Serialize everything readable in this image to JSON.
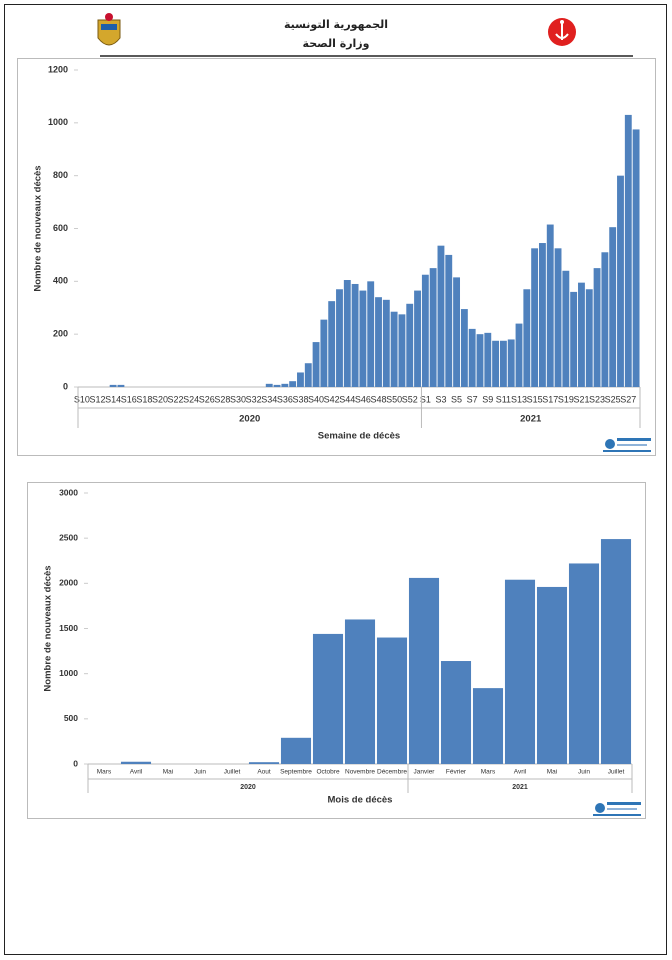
{
  "header": {
    "line1": "الجمهورية التونسية",
    "line2": "وزارة الصحة"
  },
  "chart_data": [
    {
      "type": "bar",
      "ylabel": "Nombre de nouveaux décès",
      "xlabel": "Semaine de décès",
      "color": "#4f81bd",
      "ylim": [
        0,
        1200
      ],
      "yticks": [
        0,
        200,
        400,
        600,
        800,
        1000,
        1200
      ],
      "x_groups": [
        {
          "label": "2020",
          "size": 44
        },
        {
          "label": "2021",
          "size": 28
        }
      ],
      "categories": [
        "S10",
        null,
        "S12",
        null,
        "S14",
        null,
        "S16",
        null,
        "S18",
        null,
        "S20",
        null,
        "S22",
        null,
        "S24",
        null,
        "S26",
        null,
        "S28",
        null,
        "S30",
        null,
        "S32",
        null,
        "S34",
        null,
        "S36",
        null,
        "S38",
        null,
        "S40",
        null,
        "S42",
        null,
        "S44",
        null,
        "S46",
        null,
        "S48",
        null,
        "S50",
        null,
        "S52",
        null,
        "S1",
        null,
        "S3",
        null,
        "S5",
        null,
        "S7",
        null,
        "S9",
        null,
        "S11",
        null,
        "S13",
        null,
        "S15",
        null,
        "S17",
        null,
        "S19",
        null,
        "S21",
        null,
        "S23",
        null,
        "S25",
        null,
        "S27",
        null
      ],
      "values": [
        0,
        0,
        0,
        0,
        8,
        8,
        0,
        0,
        0,
        0,
        0,
        0,
        0,
        0,
        0,
        0,
        0,
        0,
        0,
        0,
        0,
        0,
        0,
        0,
        12,
        8,
        12,
        22,
        55,
        90,
        170,
        255,
        325,
        370,
        405,
        390,
        365,
        400,
        340,
        330,
        285,
        275,
        315,
        365,
        425,
        450,
        535,
        500,
        415,
        295,
        220,
        200,
        205,
        175,
        175,
        180,
        240,
        370,
        525,
        545,
        615,
        525,
        440,
        360,
        395,
        370,
        450,
        510,
        605,
        800,
        1030,
        975
      ]
    },
    {
      "type": "bar",
      "ylabel": "Nombre de nouveaux décès",
      "xlabel": "Mois de décès",
      "color": "#4f81bd",
      "ylim": [
        0,
        3000
      ],
      "yticks": [
        0,
        500,
        1000,
        1500,
        2000,
        2500,
        3000
      ],
      "x_groups": [
        {
          "label": "2020",
          "size": 10
        },
        {
          "label": "2021",
          "size": 7
        }
      ],
      "categories": [
        "Mars",
        "Avril",
        "Mai",
        "Juin",
        "Juillet",
        "Aout",
        "Septembre",
        "Octobre",
        "Novembre",
        "Décembre",
        "Janvier",
        "Février",
        "Mars",
        "Avril",
        "Mai",
        "Juin",
        "Juillet"
      ],
      "values": [
        0,
        25,
        0,
        0,
        0,
        20,
        290,
        1440,
        1600,
        1400,
        2060,
        1140,
        840,
        2040,
        1960,
        2220,
        2490
      ]
    }
  ]
}
